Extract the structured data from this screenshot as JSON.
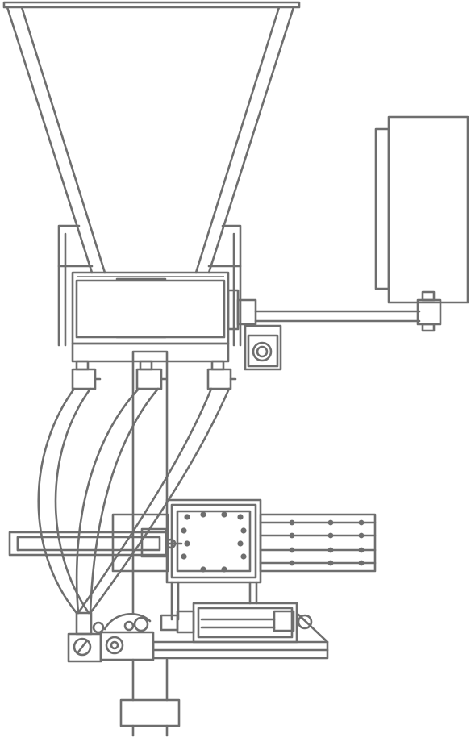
{
  "drawing": {
    "kind": "technical line drawing",
    "components": [
      "hopper",
      "dosing-body",
      "control-cabinet",
      "dosing-hoses",
      "valve-plate",
      "pneumatic-cylinders",
      "base-stand"
    ],
    "colors": {
      "line": "#6e6e6e",
      "background": "#ffffff"
    }
  }
}
